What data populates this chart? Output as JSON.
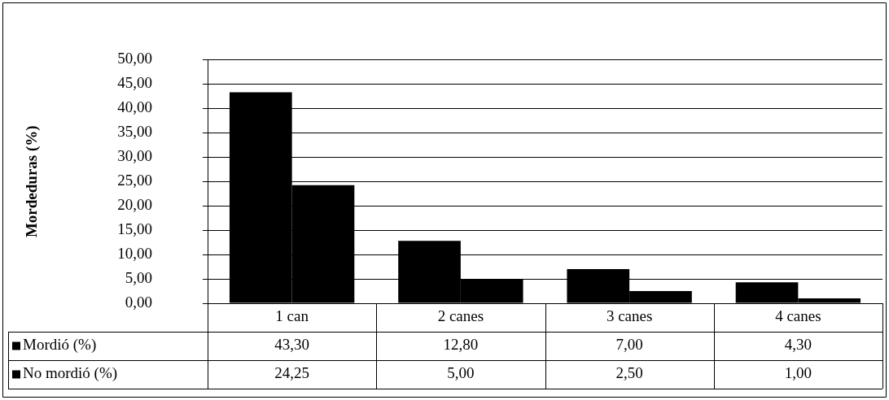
{
  "chart_data": {
    "type": "bar",
    "ylabel": "Mordeduras (%)",
    "categories": [
      "1 can",
      "2 canes",
      "3 canes",
      "4 canes"
    ],
    "series": [
      {
        "name": "Mordió (%)",
        "color": "#000000",
        "values": [
          43.3,
          12.8,
          7.0,
          4.3
        ],
        "value_labels": [
          "43,30",
          "12,80",
          "7,00",
          "4,30"
        ]
      },
      {
        "name": "No mordió (%)",
        "color": "#000000",
        "values": [
          24.25,
          5.0,
          2.5,
          1.0
        ],
        "value_labels": [
          "24,25",
          "5,00",
          "2,50",
          "1,00"
        ]
      }
    ],
    "ylim": [
      0,
      50
    ],
    "yticks": [
      {
        "value": 0,
        "label": "0,00"
      },
      {
        "value": 5,
        "label": "5,00"
      },
      {
        "value": 10,
        "label": "10,00"
      },
      {
        "value": 15,
        "label": "15,00"
      },
      {
        "value": 20,
        "label": "20,00"
      },
      {
        "value": 25,
        "label": "25,00"
      },
      {
        "value": 30,
        "label": "30,00"
      },
      {
        "value": 35,
        "label": "35,00"
      },
      {
        "value": 40,
        "label": "40,00"
      },
      {
        "value": 45,
        "label": "45,00"
      },
      {
        "value": 50,
        "label": "50,00"
      }
    ],
    "grid": "y",
    "legend": "bottom"
  }
}
